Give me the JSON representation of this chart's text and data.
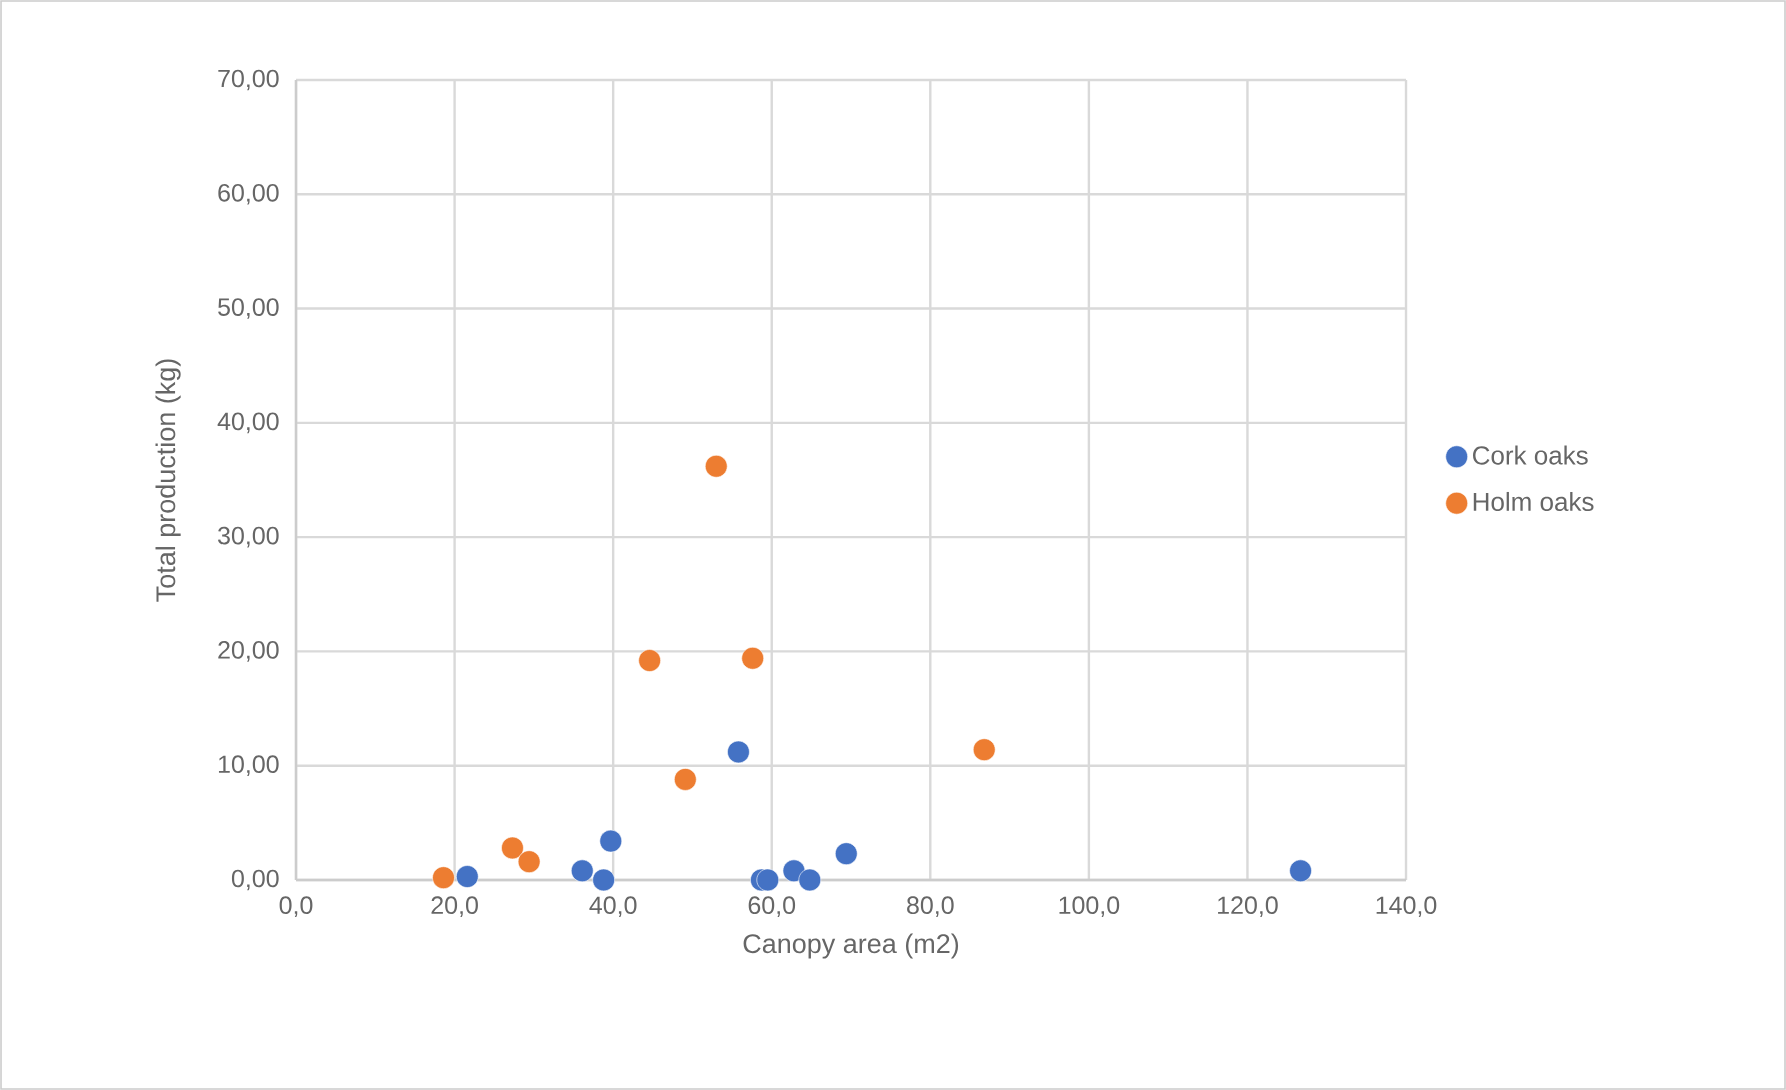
{
  "chart_data": {
    "type": "scatter",
    "xlabel": "Canopy area (m2)",
    "ylabel": "Total production (kg)",
    "xlim": [
      0,
      140
    ],
    "ylim": [
      0,
      70
    ],
    "xticks": [
      {
        "value": 0,
        "label": "0,0"
      },
      {
        "value": 20,
        "label": "20,0"
      },
      {
        "value": 40,
        "label": "40,0"
      },
      {
        "value": 60,
        "label": "60,0"
      },
      {
        "value": 80,
        "label": "80,0"
      },
      {
        "value": 100,
        "label": "100,0"
      },
      {
        "value": 120,
        "label": "120,0"
      },
      {
        "value": 140,
        "label": "140,0"
      }
    ],
    "yticks": [
      {
        "value": 0,
        "label": "0,00"
      },
      {
        "value": 10,
        "label": "10,00"
      },
      {
        "value": 20,
        "label": "20,00"
      },
      {
        "value": 30,
        "label": "30,00"
      },
      {
        "value": 40,
        "label": "40,00"
      },
      {
        "value": 50,
        "label": "50,00"
      },
      {
        "value": 60,
        "label": "60,00"
      },
      {
        "value": 70,
        "label": "70,00"
      }
    ],
    "grid": true,
    "legend": "right",
    "marker": "circle",
    "series": [
      {
        "name": "Cork oaks",
        "color": "#4472c4",
        "x": [
          21.6,
          36.1,
          38.8,
          39.7,
          55.8,
          58.7,
          59.5,
          62.8,
          64.8,
          69.4,
          126.7
        ],
        "values": [
          0.3,
          0.8,
          0,
          3.4,
          11.2,
          0,
          0,
          0.8,
          0,
          2.3,
          0.8
        ]
      },
      {
        "name": "Holm oaks",
        "color": "#ed7d31",
        "x": [
          18.6,
          27.3,
          29.4,
          44.6,
          49.1,
          53.0,
          57.6,
          86.8
        ],
        "values": [
          0.2,
          2.8,
          1.6,
          19.2,
          8.8,
          36.2,
          19.4,
          11.4
        ]
      }
    ]
  }
}
